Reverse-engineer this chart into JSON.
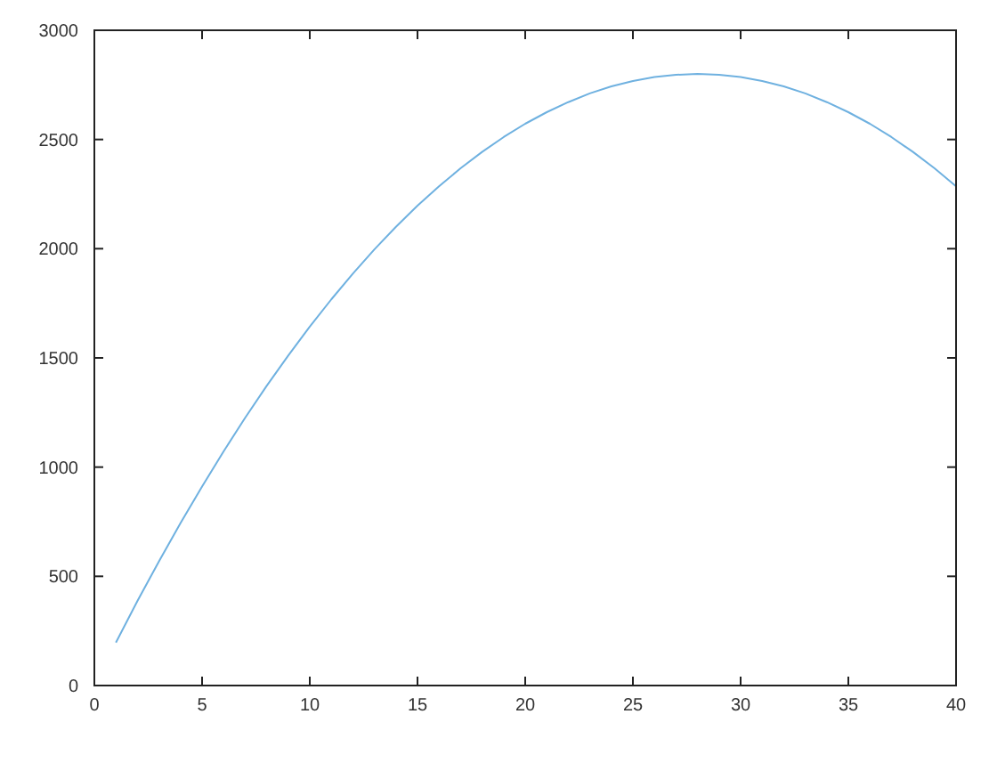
{
  "chart_data": {
    "type": "line",
    "x": [
      1,
      2,
      3,
      4,
      5,
      6,
      7,
      8,
      9,
      10,
      11,
      12,
      13,
      14,
      15,
      16,
      17,
      18,
      19,
      20,
      21,
      22,
      23,
      24,
      25,
      26,
      27,
      28,
      29,
      30,
      31,
      32,
      33,
      34,
      35,
      36,
      37,
      38,
      39,
      40
    ],
    "series": [
      {
        "color": "#6fb1e0",
        "values": [
          197,
          387,
          569,
          744,
          911,
          1072,
          1226,
          1372,
          1511,
          1643,
          1768,
          1886,
          1997,
          2100,
          2197,
          2286,
          2368,
          2443,
          2511,
          2572,
          2625,
          2671,
          2711,
          2743,
          2768,
          2786,
          2796,
          2800,
          2796,
          2786,
          2768,
          2743,
          2711,
          2671,
          2625,
          2572,
          2511,
          2443,
          2368,
          2286
        ]
      }
    ],
    "xlim": [
      0,
      40
    ],
    "xticks": [
      0,
      5,
      10,
      15,
      20,
      25,
      30,
      35,
      40
    ],
    "ylim": [
      0,
      3000
    ],
    "yticks": [
      0,
      500,
      1000,
      1500,
      2000,
      2500,
      3000
    ],
    "marker": "none",
    "line_style": "solid"
  }
}
